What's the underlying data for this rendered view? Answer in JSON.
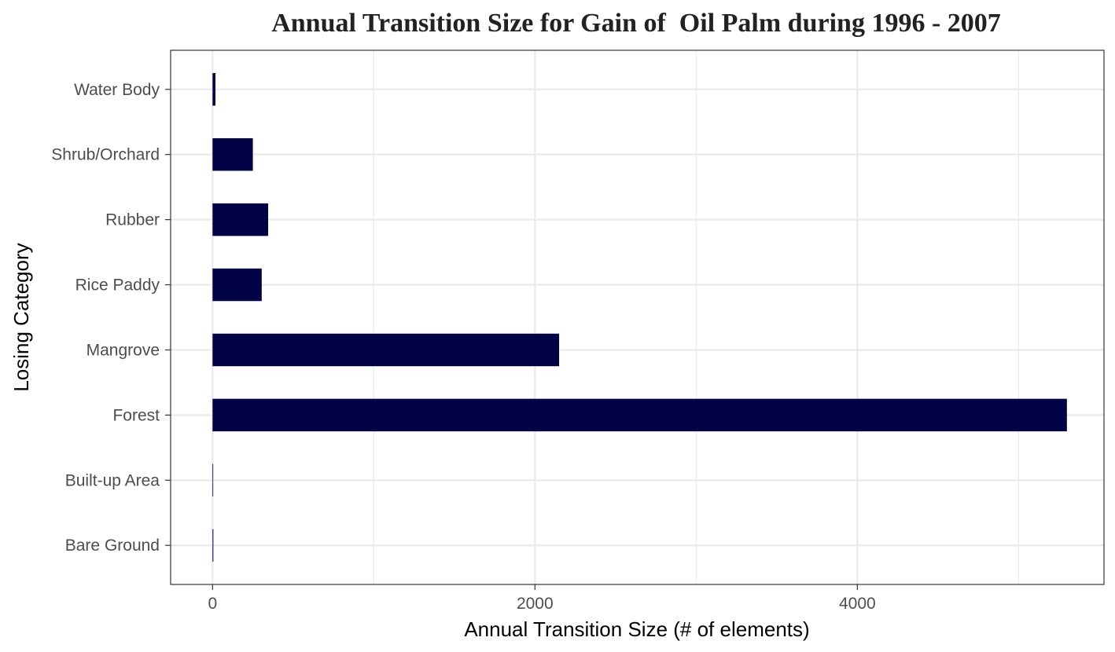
{
  "chart_data": {
    "type": "bar",
    "orientation": "horizontal",
    "title": "Annual Transition Size for Gain of  Oil Palm during 1996 - 2007",
    "xlabel": "Annual Transition Size (# of elements)",
    "ylabel": "Losing Category",
    "categories": [
      "Bare Ground",
      "Built-up Area",
      "Forest",
      "Mangrove",
      "Rice Paddy",
      "Rubber",
      "Shrub/Orchard",
      "Water Body"
    ],
    "values": [
      5,
      2,
      5300,
      2150,
      305,
      345,
      250,
      18
    ],
    "xlim": [
      -260,
      5530
    ],
    "xticks": [
      0,
      2000,
      4000
    ],
    "xtick_labels": [
      "0",
      "2000",
      "4000"
    ],
    "minor_xticks": [
      1000,
      3000,
      5000
    ],
    "grid": true,
    "bar_color": "#020346",
    "theme": "bw"
  }
}
